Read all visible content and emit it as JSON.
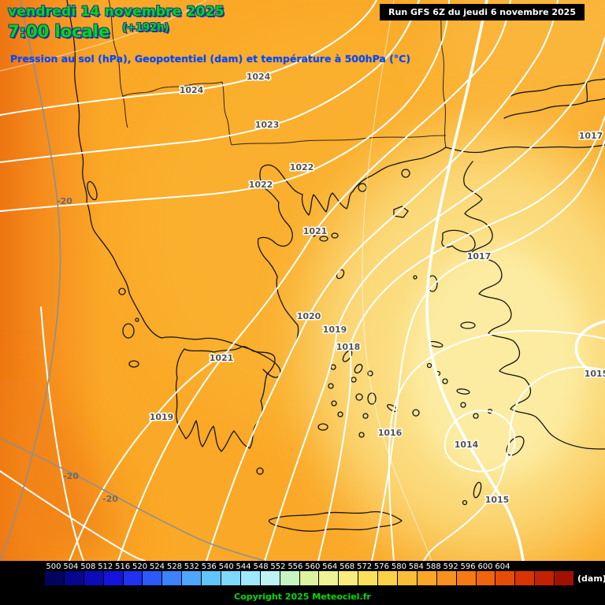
{
  "header": {
    "date": "vendredi 14 novembre 2025",
    "time": "7:00 locale",
    "forecast_offset": "(+192h)",
    "run_info": "Run GFS 6Z du jeudi 6 novembre 2025",
    "subtitle": "Pression au sol (hPa), Geopotentiel (dam) et température à 500hPa (°C)"
  },
  "map": {
    "pressure_labels": [
      "1024",
      "1024",
      "1023",
      "1022",
      "1022",
      "1021",
      "1021",
      "1020",
      "1019",
      "1018",
      "1017",
      "1017",
      "1019",
      "1016",
      "1015",
      "1014",
      "1015"
    ],
    "temperature_labels": [
      "-20",
      "-20",
      "-20"
    ],
    "fill_colors": {
      "base_orange": "#FAA827",
      "deep_orange": "#ED7512",
      "pale_yellow": "#FCECA2"
    }
  },
  "colorbar": {
    "unit": "(dam)",
    "values": [
      "500",
      "504",
      "508",
      "512",
      "516",
      "520",
      "524",
      "528",
      "532",
      "536",
      "540",
      "544",
      "548",
      "552",
      "556",
      "560",
      "564",
      "568",
      "572",
      "576",
      "580",
      "584",
      "588",
      "592",
      "596",
      "600",
      "604"
    ],
    "colors": [
      "#03035F",
      "#06068F",
      "#0B0BB7",
      "#1414DC",
      "#2230F0",
      "#2B59FA",
      "#3B82FB",
      "#4FA6FC",
      "#61C4FD",
      "#7FD8FE",
      "#9FE8FE",
      "#BFF2F4",
      "#C8F4C2",
      "#DCF4A0",
      "#F0F298",
      "#FAEC7C",
      "#FCE05C",
      "#FCD148",
      "#FBBC38",
      "#FAA728",
      "#F8911D",
      "#F47B13",
      "#EF640C",
      "#E74C07",
      "#D83504",
      "#C22202",
      "#A21002"
    ]
  },
  "footer": {
    "copyright": "Copyright 2025 Meteociel.fr"
  }
}
